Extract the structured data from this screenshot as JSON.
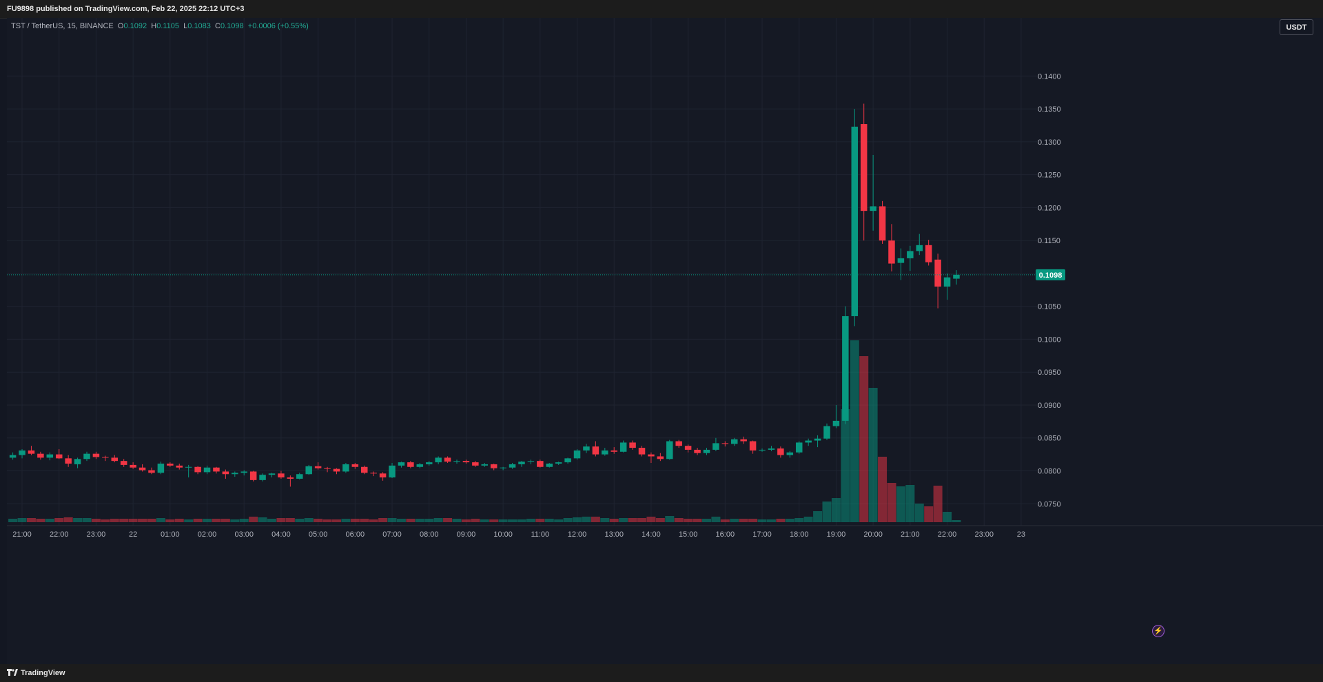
{
  "header": {
    "published": "FU9898 published on TradingView.com, Feb 22, 2025 22:12 UTC+3"
  },
  "legend": {
    "symbol": "TST / TetherUS, 15, BINANCE",
    "o_label": "O",
    "o_value": "0.1092",
    "h_label": "H",
    "h_value": "0.1105",
    "l_label": "L",
    "l_value": "0.1083",
    "c_label": "C",
    "c_value": "0.1098",
    "change": "+0.0006 (+0.55%)"
  },
  "unit_button": "USDT",
  "footer": {
    "brand": "TradingView"
  },
  "colors": {
    "up": "#089981",
    "down": "#f23645",
    "background": "#151924",
    "grid": "#1f2431",
    "axis_text": "#b2b5be",
    "last_price": "#089981"
  },
  "chart_data": {
    "type": "candlestick",
    "symbol": "TST / TetherUS",
    "interval": "15",
    "exchange": "BINANCE",
    "y_axis": {
      "side": "right",
      "ticks": [
        "0.0750",
        "0.0800",
        "0.0850",
        "0.0900",
        "0.0950",
        "0.1000",
        "0.1050",
        "0.1100",
        "0.1150",
        "0.1200",
        "0.1250",
        "0.1300",
        "0.1350",
        "0.1400"
      ],
      "range": [
        0.0722,
        0.146
      ]
    },
    "x_axis": {
      "ticks": [
        "21:00",
        "22:00",
        "23:00",
        "22",
        "01:00",
        "02:00",
        "03:00",
        "04:00",
        "05:00",
        "06:00",
        "07:00",
        "08:00",
        "09:00",
        "10:00",
        "11:00",
        "12:00",
        "13:00",
        "14:00",
        "15:00",
        "16:00",
        "17:00",
        "18:00",
        "19:00",
        "20:00",
        "21:00",
        "22:00",
        "23:00",
        "23"
      ],
      "range": [
        "Feb 21 20:45",
        "Feb 23 00:30"
      ]
    },
    "last_price": "0.1098",
    "grid": true,
    "volume_overlay": true,
    "bars": [
      {
        "t": "20:45",
        "o": 0.082,
        "h": 0.0828,
        "l": 0.0817,
        "c": 0.0824,
        "v": 0.05
      },
      {
        "t": "21:00",
        "o": 0.0824,
        "h": 0.0833,
        "l": 0.0819,
        "c": 0.0831,
        "v": 0.06
      },
      {
        "t": "21:15",
        "o": 0.0831,
        "h": 0.0838,
        "l": 0.0824,
        "c": 0.0826,
        "v": 0.06
      },
      {
        "t": "21:30",
        "o": 0.0826,
        "h": 0.0829,
        "l": 0.0817,
        "c": 0.082,
        "v": 0.05
      },
      {
        "t": "21:45",
        "o": 0.082,
        "h": 0.0828,
        "l": 0.0816,
        "c": 0.0825,
        "v": 0.05
      },
      {
        "t": "22:00",
        "o": 0.0825,
        "h": 0.0833,
        "l": 0.0818,
        "c": 0.0819,
        "v": 0.06
      },
      {
        "t": "22:15",
        "o": 0.0819,
        "h": 0.0824,
        "l": 0.0806,
        "c": 0.0811,
        "v": 0.07
      },
      {
        "t": "22:30",
        "o": 0.081,
        "h": 0.082,
        "l": 0.0804,
        "c": 0.0818,
        "v": 0.06
      },
      {
        "t": "22:45",
        "o": 0.0818,
        "h": 0.0829,
        "l": 0.0815,
        "c": 0.0826,
        "v": 0.06
      },
      {
        "t": "23:00",
        "o": 0.0826,
        "h": 0.0829,
        "l": 0.0818,
        "c": 0.0821,
        "v": 0.05
      },
      {
        "t": "23:15",
        "o": 0.0821,
        "h": 0.0823,
        "l": 0.0815,
        "c": 0.082,
        "v": 0.04
      },
      {
        "t": "23:30",
        "o": 0.082,
        "h": 0.0824,
        "l": 0.0813,
        "c": 0.0815,
        "v": 0.05
      },
      {
        "t": "23:45",
        "o": 0.0815,
        "h": 0.0818,
        "l": 0.0806,
        "c": 0.0809,
        "v": 0.05
      },
      {
        "t": "00:00",
        "o": 0.0809,
        "h": 0.0813,
        "l": 0.0803,
        "c": 0.0805,
        "v": 0.05
      },
      {
        "t": "00:15",
        "o": 0.0805,
        "h": 0.081,
        "l": 0.0799,
        "c": 0.0801,
        "v": 0.05
      },
      {
        "t": "00:30",
        "o": 0.0801,
        "h": 0.0805,
        "l": 0.0795,
        "c": 0.0797,
        "v": 0.05
      },
      {
        "t": "00:45",
        "o": 0.0797,
        "h": 0.0814,
        "l": 0.0795,
        "c": 0.0811,
        "v": 0.06
      },
      {
        "t": "01:00",
        "o": 0.0811,
        "h": 0.0813,
        "l": 0.0806,
        "c": 0.0808,
        "v": 0.04
      },
      {
        "t": "01:15",
        "o": 0.0808,
        "h": 0.0811,
        "l": 0.0802,
        "c": 0.0805,
        "v": 0.05
      },
      {
        "t": "01:30",
        "o": 0.0805,
        "h": 0.0809,
        "l": 0.079,
        "c": 0.0806,
        "v": 0.04
      },
      {
        "t": "01:45",
        "o": 0.0806,
        "h": 0.0807,
        "l": 0.0795,
        "c": 0.0798,
        "v": 0.05
      },
      {
        "t": "02:00",
        "o": 0.0798,
        "h": 0.0808,
        "l": 0.0795,
        "c": 0.0805,
        "v": 0.05
      },
      {
        "t": "02:15",
        "o": 0.0805,
        "h": 0.0806,
        "l": 0.0796,
        "c": 0.0799,
        "v": 0.05
      },
      {
        "t": "02:30",
        "o": 0.0799,
        "h": 0.0802,
        "l": 0.0788,
        "c": 0.0795,
        "v": 0.05
      },
      {
        "t": "02:45",
        "o": 0.0795,
        "h": 0.0799,
        "l": 0.0791,
        "c": 0.0797,
        "v": 0.04
      },
      {
        "t": "03:00",
        "o": 0.0797,
        "h": 0.0801,
        "l": 0.0793,
        "c": 0.0799,
        "v": 0.05
      },
      {
        "t": "03:15",
        "o": 0.0799,
        "h": 0.08,
        "l": 0.0784,
        "c": 0.0786,
        "v": 0.08
      },
      {
        "t": "03:30",
        "o": 0.0786,
        "h": 0.0796,
        "l": 0.0784,
        "c": 0.0794,
        "v": 0.07
      },
      {
        "t": "03:45",
        "o": 0.0794,
        "h": 0.0797,
        "l": 0.079,
        "c": 0.0796,
        "v": 0.05
      },
      {
        "t": "04:00",
        "o": 0.0796,
        "h": 0.08,
        "l": 0.0788,
        "c": 0.079,
        "v": 0.06
      },
      {
        "t": "04:15",
        "o": 0.079,
        "h": 0.0793,
        "l": 0.0776,
        "c": 0.0788,
        "v": 0.06
      },
      {
        "t": "04:30",
        "o": 0.0788,
        "h": 0.0797,
        "l": 0.0787,
        "c": 0.0795,
        "v": 0.05
      },
      {
        "t": "04:45",
        "o": 0.0795,
        "h": 0.0809,
        "l": 0.0794,
        "c": 0.0807,
        "v": 0.06
      },
      {
        "t": "05:00",
        "o": 0.0807,
        "h": 0.0813,
        "l": 0.0802,
        "c": 0.0804,
        "v": 0.05
      },
      {
        "t": "05:15",
        "o": 0.0804,
        "h": 0.0806,
        "l": 0.0798,
        "c": 0.0803,
        "v": 0.04
      },
      {
        "t": "05:30",
        "o": 0.0803,
        "h": 0.0804,
        "l": 0.0795,
        "c": 0.0799,
        "v": 0.04
      },
      {
        "t": "05:45",
        "o": 0.0799,
        "h": 0.0812,
        "l": 0.0797,
        "c": 0.081,
        "v": 0.05
      },
      {
        "t": "06:00",
        "o": 0.081,
        "h": 0.0812,
        "l": 0.0803,
        "c": 0.0806,
        "v": 0.05
      },
      {
        "t": "06:15",
        "o": 0.0806,
        "h": 0.0808,
        "l": 0.0795,
        "c": 0.0797,
        "v": 0.05
      },
      {
        "t": "06:30",
        "o": 0.0797,
        "h": 0.0799,
        "l": 0.0792,
        "c": 0.0796,
        "v": 0.04
      },
      {
        "t": "06:45",
        "o": 0.0796,
        "h": 0.0798,
        "l": 0.0785,
        "c": 0.079,
        "v": 0.06
      },
      {
        "t": "07:00",
        "o": 0.079,
        "h": 0.0812,
        "l": 0.0789,
        "c": 0.0808,
        "v": 0.06
      },
      {
        "t": "07:15",
        "o": 0.0808,
        "h": 0.0814,
        "l": 0.0805,
        "c": 0.0813,
        "v": 0.05
      },
      {
        "t": "07:30",
        "o": 0.0813,
        "h": 0.0815,
        "l": 0.0804,
        "c": 0.0806,
        "v": 0.05
      },
      {
        "t": "07:45",
        "o": 0.0806,
        "h": 0.0812,
        "l": 0.0804,
        "c": 0.081,
        "v": 0.05
      },
      {
        "t": "08:00",
        "o": 0.081,
        "h": 0.0815,
        "l": 0.0808,
        "c": 0.0813,
        "v": 0.05
      },
      {
        "t": "08:15",
        "o": 0.0813,
        "h": 0.0822,
        "l": 0.081,
        "c": 0.082,
        "v": 0.06
      },
      {
        "t": "08:30",
        "o": 0.082,
        "h": 0.0822,
        "l": 0.0812,
        "c": 0.0814,
        "v": 0.06
      },
      {
        "t": "08:45",
        "o": 0.0814,
        "h": 0.0817,
        "l": 0.0811,
        "c": 0.0815,
        "v": 0.05
      },
      {
        "t": "09:00",
        "o": 0.0815,
        "h": 0.0817,
        "l": 0.0811,
        "c": 0.0813,
        "v": 0.04
      },
      {
        "t": "09:15",
        "o": 0.0813,
        "h": 0.0815,
        "l": 0.0806,
        "c": 0.0808,
        "v": 0.05
      },
      {
        "t": "09:30",
        "o": 0.0808,
        "h": 0.0812,
        "l": 0.0806,
        "c": 0.081,
        "v": 0.04
      },
      {
        "t": "09:45",
        "o": 0.081,
        "h": 0.0811,
        "l": 0.0801,
        "c": 0.0804,
        "v": 0.04
      },
      {
        "t": "10:00",
        "o": 0.0804,
        "h": 0.0806,
        "l": 0.0801,
        "c": 0.0805,
        "v": 0.04
      },
      {
        "t": "10:15",
        "o": 0.0805,
        "h": 0.0812,
        "l": 0.0803,
        "c": 0.081,
        "v": 0.04
      },
      {
        "t": "10:30",
        "o": 0.081,
        "h": 0.0815,
        "l": 0.0806,
        "c": 0.0814,
        "v": 0.04
      },
      {
        "t": "10:45",
        "o": 0.0814,
        "h": 0.0817,
        "l": 0.081,
        "c": 0.0815,
        "v": 0.05
      },
      {
        "t": "11:00",
        "o": 0.0815,
        "h": 0.0817,
        "l": 0.0805,
        "c": 0.0806,
        "v": 0.05
      },
      {
        "t": "11:15",
        "o": 0.0806,
        "h": 0.0812,
        "l": 0.0805,
        "c": 0.0811,
        "v": 0.05
      },
      {
        "t": "11:30",
        "o": 0.0811,
        "h": 0.0814,
        "l": 0.0809,
        "c": 0.0813,
        "v": 0.04
      },
      {
        "t": "11:45",
        "o": 0.0813,
        "h": 0.082,
        "l": 0.0811,
        "c": 0.0819,
        "v": 0.06
      },
      {
        "t": "12:00",
        "o": 0.0819,
        "h": 0.0833,
        "l": 0.0817,
        "c": 0.0831,
        "v": 0.07
      },
      {
        "t": "12:15",
        "o": 0.0831,
        "h": 0.0841,
        "l": 0.0827,
        "c": 0.0837,
        "v": 0.08
      },
      {
        "t": "12:30",
        "o": 0.0837,
        "h": 0.0845,
        "l": 0.0822,
        "c": 0.0825,
        "v": 0.08
      },
      {
        "t": "12:45",
        "o": 0.0825,
        "h": 0.0835,
        "l": 0.0823,
        "c": 0.0831,
        "v": 0.06
      },
      {
        "t": "13:00",
        "o": 0.0831,
        "h": 0.0836,
        "l": 0.0826,
        "c": 0.0829,
        "v": 0.05
      },
      {
        "t": "13:15",
        "o": 0.0829,
        "h": 0.0846,
        "l": 0.0828,
        "c": 0.0843,
        "v": 0.06
      },
      {
        "t": "13:30",
        "o": 0.0843,
        "h": 0.0846,
        "l": 0.0832,
        "c": 0.0835,
        "v": 0.06
      },
      {
        "t": "13:45",
        "o": 0.0835,
        "h": 0.0838,
        "l": 0.0822,
        "c": 0.0825,
        "v": 0.06
      },
      {
        "t": "14:00",
        "o": 0.0825,
        "h": 0.0828,
        "l": 0.0812,
        "c": 0.0822,
        "v": 0.08
      },
      {
        "t": "14:15",
        "o": 0.0822,
        "h": 0.0827,
        "l": 0.0815,
        "c": 0.0818,
        "v": 0.06
      },
      {
        "t": "14:30",
        "o": 0.0818,
        "h": 0.0847,
        "l": 0.0817,
        "c": 0.0845,
        "v": 0.09
      },
      {
        "t": "14:45",
        "o": 0.0845,
        "h": 0.0847,
        "l": 0.0835,
        "c": 0.0838,
        "v": 0.06
      },
      {
        "t": "15:00",
        "o": 0.0838,
        "h": 0.084,
        "l": 0.0828,
        "c": 0.0832,
        "v": 0.05
      },
      {
        "t": "15:15",
        "o": 0.0832,
        "h": 0.0835,
        "l": 0.0824,
        "c": 0.0827,
        "v": 0.05
      },
      {
        "t": "15:30",
        "o": 0.0827,
        "h": 0.0835,
        "l": 0.0824,
        "c": 0.0832,
        "v": 0.05
      },
      {
        "t": "15:45",
        "o": 0.0832,
        "h": 0.085,
        "l": 0.083,
        "c": 0.0842,
        "v": 0.08
      },
      {
        "t": "16:00",
        "o": 0.0842,
        "h": 0.0845,
        "l": 0.0837,
        "c": 0.0841,
        "v": 0.04
      },
      {
        "t": "16:15",
        "o": 0.0841,
        "h": 0.085,
        "l": 0.0838,
        "c": 0.0848,
        "v": 0.05
      },
      {
        "t": "16:30",
        "o": 0.0848,
        "h": 0.0852,
        "l": 0.0841,
        "c": 0.0845,
        "v": 0.05
      },
      {
        "t": "16:45",
        "o": 0.0845,
        "h": 0.0846,
        "l": 0.0826,
        "c": 0.0831,
        "v": 0.05
      },
      {
        "t": "17:00",
        "o": 0.0831,
        "h": 0.0834,
        "l": 0.0829,
        "c": 0.0832,
        "v": 0.04
      },
      {
        "t": "17:15",
        "o": 0.0832,
        "h": 0.0838,
        "l": 0.083,
        "c": 0.0834,
        "v": 0.04
      },
      {
        "t": "17:30",
        "o": 0.0834,
        "h": 0.0837,
        "l": 0.082,
        "c": 0.0824,
        "v": 0.05
      },
      {
        "t": "17:45",
        "o": 0.0824,
        "h": 0.083,
        "l": 0.082,
        "c": 0.0828,
        "v": 0.05
      },
      {
        "t": "18:00",
        "o": 0.0828,
        "h": 0.0845,
        "l": 0.0826,
        "c": 0.0843,
        "v": 0.06
      },
      {
        "t": "18:15",
        "o": 0.0843,
        "h": 0.0849,
        "l": 0.0838,
        "c": 0.0846,
        "v": 0.08
      },
      {
        "t": "18:30",
        "o": 0.0846,
        "h": 0.0854,
        "l": 0.0836,
        "c": 0.0849,
        "v": 0.16
      },
      {
        "t": "18:45",
        "o": 0.0849,
        "h": 0.0872,
        "l": 0.0847,
        "c": 0.0868,
        "v": 0.3
      },
      {
        "t": "19:00",
        "o": 0.0868,
        "h": 0.09,
        "l": 0.0865,
        "c": 0.0876,
        "v": 0.35
      },
      {
        "t": "19:15",
        "o": 0.0876,
        "h": 0.105,
        "l": 0.0871,
        "c": 0.1035,
        "v": 1.64
      },
      {
        "t": "19:30",
        "o": 0.1035,
        "h": 0.135,
        "l": 0.102,
        "c": 0.1323,
        "v": 2.64
      },
      {
        "t": "19:45",
        "o": 0.1327,
        "h": 0.1358,
        "l": 0.115,
        "c": 0.1195,
        "v": 2.41
      },
      {
        "t": "20:00",
        "o": 0.1195,
        "h": 0.128,
        "l": 0.1165,
        "c": 0.1202,
        "v": 1.95
      },
      {
        "t": "20:15",
        "o": 0.1202,
        "h": 0.121,
        "l": 0.1145,
        "c": 0.115,
        "v": 0.95
      },
      {
        "t": "20:30",
        "o": 0.115,
        "h": 0.1175,
        "l": 0.1103,
        "c": 0.1115,
        "v": 0.57
      },
      {
        "t": "20:45",
        "o": 0.1116,
        "h": 0.1138,
        "l": 0.109,
        "c": 0.1123,
        "v": 0.52
      },
      {
        "t": "21:00",
        "o": 0.1123,
        "h": 0.1142,
        "l": 0.1104,
        "c": 0.1134,
        "v": 0.54
      },
      {
        "t": "21:15",
        "o": 0.1134,
        "h": 0.116,
        "l": 0.1128,
        "c": 0.1143,
        "v": 0.27
      },
      {
        "t": "21:30",
        "o": 0.1143,
        "h": 0.1151,
        "l": 0.1112,
        "c": 0.1117,
        "v": 0.23
      },
      {
        "t": "21:45",
        "o": 0.1121,
        "h": 0.113,
        "l": 0.1047,
        "c": 0.108,
        "v": 0.53
      },
      {
        "t": "22:00",
        "o": 0.108,
        "h": 0.11,
        "l": 0.106,
        "c": 0.1094,
        "v": 0.15
      },
      {
        "t": "22:15",
        "o": 0.1092,
        "h": 0.1105,
        "l": 0.1083,
        "c": 0.1098,
        "v": 0.03
      }
    ]
  }
}
